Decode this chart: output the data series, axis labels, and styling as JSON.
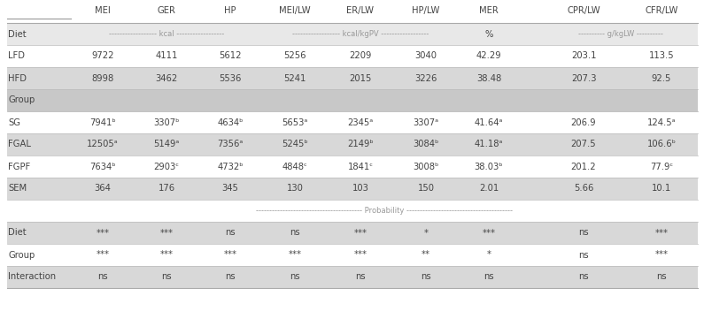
{
  "columns": [
    "",
    "MEI",
    "GER",
    "HP",
    "MEI/LW",
    "ER/LW",
    "HP/LW",
    "MER",
    "CPR/LW",
    "CFR/LW"
  ],
  "rows": [
    {
      "label": "Diet",
      "values": [
        "kcal_span",
        "",
        "",
        "kcalkgpv_span",
        "",
        "",
        "%",
        "gkglw_span",
        ""
      ],
      "bg": "#e8e8e8",
      "type": "subheader"
    },
    {
      "label": "LFD",
      "values": [
        "9722",
        "4111",
        "5612",
        "5256",
        "2209",
        "3040",
        "42.29",
        "203.1",
        "113.5"
      ],
      "bg": "#ffffff",
      "type": "data"
    },
    {
      "label": "HFD",
      "values": [
        "8998",
        "3462",
        "5536",
        "5241",
        "2015",
        "3226",
        "38.48",
        "207.3",
        "92.5"
      ],
      "bg": "#d8d8d8",
      "type": "data"
    },
    {
      "label": "Group",
      "values": [
        "",
        "",
        "",
        "",
        "",
        "",
        "",
        "",
        ""
      ],
      "bg": "#c8c8c8",
      "type": "groupheader"
    },
    {
      "label": "SG",
      "values": [
        "7941ᵇ",
        "3307ᵇ",
        "4634ᵇ",
        "5653ᵃ",
        "2345ᵃ",
        "3307ᵃ",
        "41.64ᵃ",
        "206.9",
        "124.5ᵃ"
      ],
      "bg": "#ffffff",
      "type": "data"
    },
    {
      "label": "FGAL",
      "values": [
        "12505ᵃ",
        "5149ᵃ",
        "7356ᵃ",
        "5245ᵇ",
        "2149ᵇ",
        "3084ᵇ",
        "41.18ᵃ",
        "207.5",
        "106.6ᵇ"
      ],
      "bg": "#d8d8d8",
      "type": "data"
    },
    {
      "label": "FGPF",
      "values": [
        "7634ᵇ",
        "2903ᶜ",
        "4732ᵇ",
        "4848ᶜ",
        "1841ᶜ",
        "3008ᵇ",
        "38.03ᵇ",
        "201.2",
        "77.9ᶜ"
      ],
      "bg": "#ffffff",
      "type": "data"
    },
    {
      "label": "SEM",
      "values": [
        "364",
        "176",
        "345",
        "130",
        "103",
        "150",
        "2.01",
        "5.66",
        "10.1"
      ],
      "bg": "#d8d8d8",
      "type": "data"
    },
    {
      "label": "",
      "values": [
        "prob_span",
        "",
        "",
        "",
        "",
        "",
        "",
        "",
        ""
      ],
      "bg": "#ffffff",
      "type": "subheader2"
    },
    {
      "label": "Diet",
      "values": [
        "***",
        "***",
        "ns",
        "ns",
        "***",
        "*",
        "***",
        "ns",
        "***"
      ],
      "bg": "#d8d8d8",
      "type": "data"
    },
    {
      "label": "Group",
      "values": [
        "***",
        "***",
        "***",
        "***",
        "***",
        "**",
        "*",
        "ns",
        "***"
      ],
      "bg": "#ffffff",
      "type": "data"
    },
    {
      "label": "Interaction",
      "values": [
        "ns",
        "ns",
        "ns",
        "ns",
        "ns",
        "ns",
        "ns",
        "ns",
        "ns"
      ],
      "bg": "#d8d8d8",
      "type": "data"
    }
  ],
  "text_color": "#444444",
  "font_size": 7.2,
  "header_font_size": 7.2,
  "dash_color": "#999999",
  "light_gray": "#d8d8d8",
  "mid_gray": "#c8c8c8"
}
